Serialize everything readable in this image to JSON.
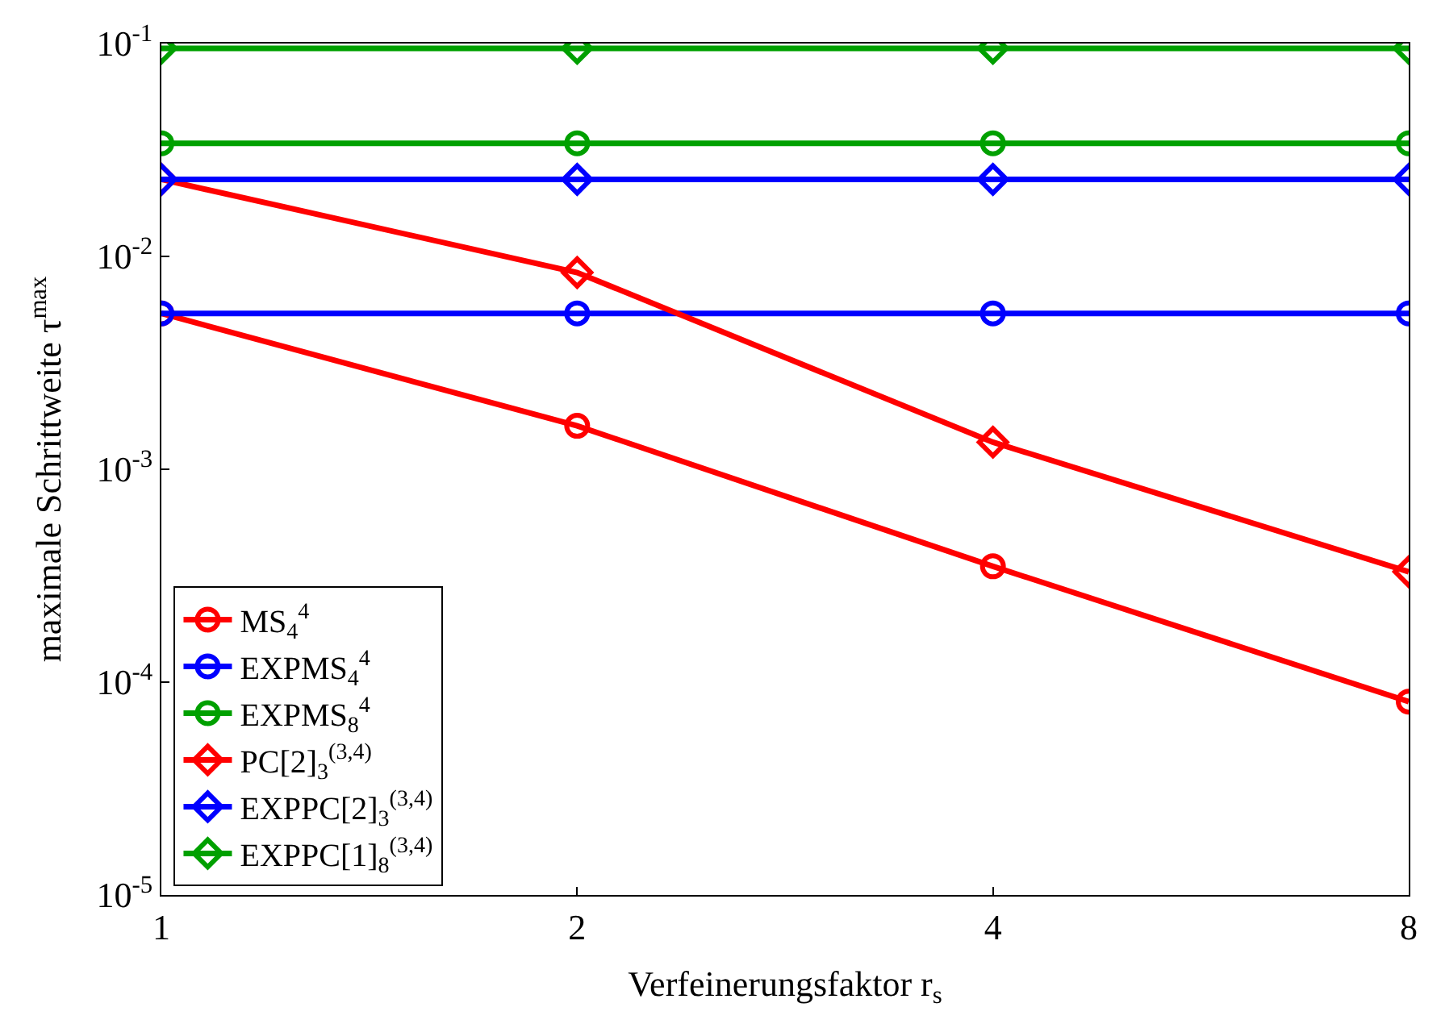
{
  "chart_data": {
    "type": "line",
    "xlabel": "Verfeinerungsfaktor r$_{s}$",
    "ylabel": "maximale Schrittweite τ$^{max}$",
    "x": [
      1,
      2,
      4,
      8
    ],
    "log": "xy",
    "xlim": [
      1,
      8
    ],
    "xticks": [
      1,
      2,
      4,
      8
    ],
    "ylim": [
      1e-05,
      0.1
    ],
    "yticks": [
      {
        "value": 1e-05,
        "label": "10$^{-5}$"
      },
      {
        "value": 0.0001,
        "label": "10$^{-4}$"
      },
      {
        "value": 0.001,
        "label": "10$^{-3}$"
      },
      {
        "value": 0.01,
        "label": "10$^{-2}$"
      },
      {
        "value": 0.1,
        "label": "10$^{-1}$"
      }
    ],
    "legend": "bottom left",
    "series": [
      {
        "name": "MS$_{4}$$^{4}$",
        "color": "#ff0000",
        "marker": "circle",
        "values": [
          0.0054,
          0.0016,
          0.00035,
          8.1e-05
        ]
      },
      {
        "name": "EXPMS$_{4}$$^{4}$",
        "color": "#0000ff",
        "marker": "circle",
        "values": [
          0.0054,
          0.0054,
          0.0054,
          0.0054
        ]
      },
      {
        "name": "EXPMS$_{8}$$^{4}$",
        "color": "#00a000",
        "marker": "circle",
        "values": [
          0.034,
          0.034,
          0.034,
          0.034
        ]
      },
      {
        "name": "PC[2]$_{3}$$^{(3,4)}$",
        "color": "#ff0000",
        "marker": "diamond",
        "values": [
          0.023,
          0.0084,
          0.00134,
          0.00033
        ]
      },
      {
        "name": "EXPPC[2]$_{3}$$^{(3,4)}$",
        "color": "#0000ff",
        "marker": "diamond",
        "values": [
          0.023,
          0.023,
          0.023,
          0.023
        ]
      },
      {
        "name": "EXPPC[1]$_{8}$$^{(3,4)}$",
        "color": "#00a000",
        "marker": "diamond",
        "values": [
          0.095,
          0.095,
          0.095,
          0.095
        ]
      }
    ]
  }
}
